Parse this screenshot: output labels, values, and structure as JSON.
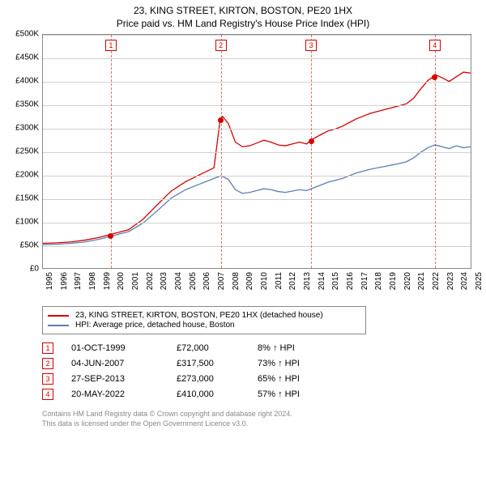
{
  "title_line1": "23, KING STREET, KIRTON, BOSTON, PE20 1HX",
  "title_line2": "Price paid vs. HM Land Registry's House Price Index (HPI)",
  "chart": {
    "type": "line",
    "background_color": "#ffffff",
    "grid_color": "#d0d0d0",
    "border_color": "#888888",
    "y_axis": {
      "min": 0,
      "max": 500000,
      "tick_step": 50000,
      "tick_labels": [
        "£0",
        "£50K",
        "£100K",
        "£150K",
        "£200K",
        "£250K",
        "£300K",
        "£350K",
        "£400K",
        "£450K",
        "£500K"
      ],
      "label_fontsize": 10
    },
    "x_axis": {
      "min": 1995,
      "max": 2025,
      "tick_step": 1,
      "tick_labels": [
        "1995",
        "1996",
        "1997",
        "1998",
        "1999",
        "2000",
        "2001",
        "2002",
        "2003",
        "2004",
        "2005",
        "2006",
        "2007",
        "2008",
        "2009",
        "2010",
        "2011",
        "2012",
        "2013",
        "2014",
        "2015",
        "2016",
        "2017",
        "2018",
        "2019",
        "2020",
        "2021",
        "2022",
        "2023",
        "2024",
        "2025"
      ],
      "label_fontsize": 10,
      "label_rotation": -90
    },
    "series": [
      {
        "name": "23, KING STREET, KIRTON, BOSTON, PE20 1HX (detached house)",
        "color": "#d40000",
        "line_width": 1.3,
        "data": [
          [
            1995,
            53000
          ],
          [
            1996,
            54000
          ],
          [
            1997,
            56000
          ],
          [
            1998,
            60000
          ],
          [
            1999,
            66000
          ],
          [
            1999.75,
            72000
          ],
          [
            2000,
            74000
          ],
          [
            2001,
            82000
          ],
          [
            2002,
            104000
          ],
          [
            2003,
            135000
          ],
          [
            2004,
            165000
          ],
          [
            2005,
            185000
          ],
          [
            2006,
            200000
          ],
          [
            2007,
            215000
          ],
          [
            2007.43,
            317500
          ],
          [
            2007.6,
            325000
          ],
          [
            2008,
            310000
          ],
          [
            2008.5,
            270000
          ],
          [
            2009,
            260000
          ],
          [
            2009.5,
            262000
          ],
          [
            2010,
            268000
          ],
          [
            2010.5,
            274000
          ],
          [
            2011,
            270000
          ],
          [
            2011.5,
            264000
          ],
          [
            2012,
            262000
          ],
          [
            2012.5,
            266000
          ],
          [
            2013,
            270000
          ],
          [
            2013.5,
            266000
          ],
          [
            2013.74,
            273000
          ],
          [
            2014,
            278000
          ],
          [
            2014.5,
            286000
          ],
          [
            2015,
            294000
          ],
          [
            2015.5,
            298000
          ],
          [
            2016,
            304000
          ],
          [
            2016.5,
            312000
          ],
          [
            2017,
            320000
          ],
          [
            2017.5,
            326000
          ],
          [
            2018,
            332000
          ],
          [
            2018.5,
            336000
          ],
          [
            2019,
            340000
          ],
          [
            2019.5,
            344000
          ],
          [
            2020,
            348000
          ],
          [
            2020.5,
            352000
          ],
          [
            2021,
            364000
          ],
          [
            2021.5,
            384000
          ],
          [
            2022,
            402000
          ],
          [
            2022.38,
            410000
          ],
          [
            2022.5,
            415000
          ],
          [
            2023,
            408000
          ],
          [
            2023.5,
            400000
          ],
          [
            2024,
            410000
          ],
          [
            2024.5,
            420000
          ],
          [
            2025,
            418000
          ]
        ]
      },
      {
        "name": "HPI: Average price, detached house, Boston",
        "color": "#5b7fb0",
        "line_width": 1.1,
        "data": [
          [
            1995,
            50000
          ],
          [
            1996,
            51000
          ],
          [
            1997,
            53000
          ],
          [
            1998,
            56000
          ],
          [
            1999,
            62000
          ],
          [
            2000,
            70000
          ],
          [
            2001,
            78000
          ],
          [
            2002,
            96000
          ],
          [
            2003,
            122000
          ],
          [
            2004,
            150000
          ],
          [
            2005,
            168000
          ],
          [
            2006,
            180000
          ],
          [
            2007,
            192000
          ],
          [
            2007.5,
            198000
          ],
          [
            2008,
            190000
          ],
          [
            2008.5,
            168000
          ],
          [
            2009,
            160000
          ],
          [
            2009.5,
            162000
          ],
          [
            2010,
            166000
          ],
          [
            2010.5,
            170000
          ],
          [
            2011,
            168000
          ],
          [
            2011.5,
            164000
          ],
          [
            2012,
            162000
          ],
          [
            2012.5,
            165000
          ],
          [
            2013,
            168000
          ],
          [
            2013.5,
            166000
          ],
          [
            2014,
            172000
          ],
          [
            2014.5,
            178000
          ],
          [
            2015,
            184000
          ],
          [
            2015.5,
            188000
          ],
          [
            2016,
            192000
          ],
          [
            2016.5,
            198000
          ],
          [
            2017,
            204000
          ],
          [
            2017.5,
            208000
          ],
          [
            2018,
            212000
          ],
          [
            2018.5,
            215000
          ],
          [
            2019,
            218000
          ],
          [
            2019.5,
            221000
          ],
          [
            2020,
            224000
          ],
          [
            2020.5,
            228000
          ],
          [
            2021,
            236000
          ],
          [
            2021.5,
            248000
          ],
          [
            2022,
            258000
          ],
          [
            2022.5,
            264000
          ],
          [
            2023,
            260000
          ],
          [
            2023.5,
            256000
          ],
          [
            2024,
            262000
          ],
          [
            2024.5,
            258000
          ],
          [
            2025,
            260000
          ]
        ]
      }
    ],
    "markers": [
      {
        "n": "1",
        "year": 1999.75,
        "value": 72000,
        "color": "#d40000"
      },
      {
        "n": "2",
        "year": 2007.43,
        "value": 317500,
        "color": "#d40000"
      },
      {
        "n": "3",
        "year": 2013.74,
        "value": 273000,
        "color": "#d40000"
      },
      {
        "n": "4",
        "year": 2022.38,
        "value": 410000,
        "color": "#d40000"
      }
    ]
  },
  "legend": {
    "items": [
      {
        "color": "#d40000",
        "label": "23, KING STREET, KIRTON, BOSTON, PE20 1HX (detached house)"
      },
      {
        "color": "#5b7fb0",
        "label": "HPI: Average price, detached house, Boston"
      }
    ]
  },
  "events": [
    {
      "n": "1",
      "date": "01-OCT-1999",
      "price": "£72,000",
      "pct": "8% ↑ HPI"
    },
    {
      "n": "2",
      "date": "04-JUN-2007",
      "price": "£317,500",
      "pct": "73% ↑ HPI"
    },
    {
      "n": "3",
      "date": "27-SEP-2013",
      "price": "£273,000",
      "pct": "65% ↑ HPI"
    },
    {
      "n": "4",
      "date": "20-MAY-2022",
      "price": "£410,000",
      "pct": "57% ↑ HPI"
    }
  ],
  "footer": {
    "line1": "Contains HM Land Registry data © Crown copyright and database right 2024.",
    "line2": "This data is licensed under the Open Government Licence v3.0."
  }
}
